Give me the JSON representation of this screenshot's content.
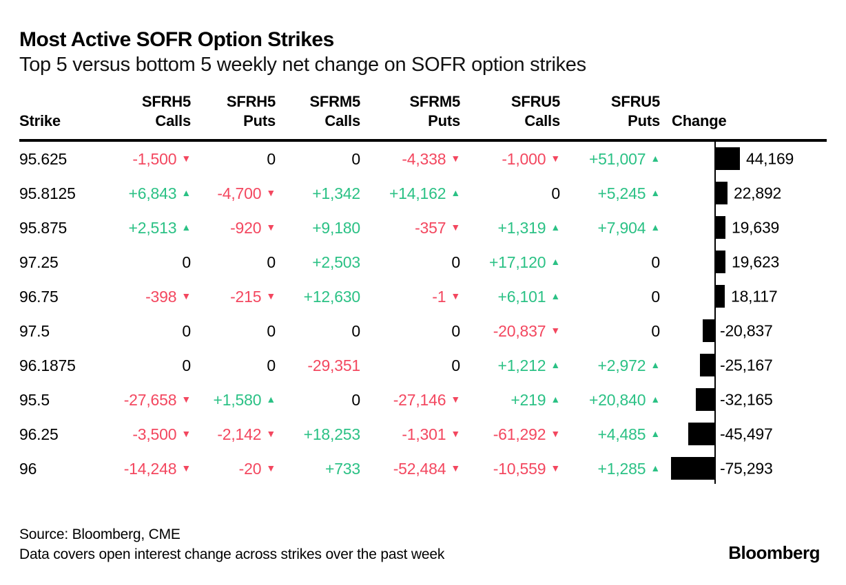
{
  "header": {
    "title": "Most Active SOFR Option Strikes",
    "subtitle": "Top 5 versus bottom 5 weekly net change on SOFR option strikes"
  },
  "colors": {
    "up": "#2bc185",
    "down": "#f3475f",
    "bar": "#000000"
  },
  "table": {
    "column_headers": [
      {
        "top": "",
        "bottom": "Strike"
      },
      {
        "top": "SFRH5",
        "bottom": "Calls"
      },
      {
        "top": "SFRH5",
        "bottom": "Puts"
      },
      {
        "top": "SFRM5",
        "bottom": "Calls"
      },
      {
        "top": "SFRM5",
        "bottom": "Puts"
      },
      {
        "top": "SFRU5",
        "bottom": "Calls"
      },
      {
        "top": "SFRU5",
        "bottom": "Puts"
      },
      {
        "top": "",
        "bottom": "Change"
      }
    ],
    "bar_scale_max": 75293,
    "rows": [
      {
        "strike": "95.625",
        "values": [
          {
            "t": "-1,500",
            "arrow": "down"
          },
          {
            "t": "0"
          },
          {
            "t": "0"
          },
          {
            "t": "-4,338",
            "arrow": "down"
          },
          {
            "t": "-1,000",
            "arrow": "down"
          },
          {
            "t": "+51,007",
            "arrow": "up"
          }
        ],
        "change": {
          "value": 44169,
          "label": "44,169"
        }
      },
      {
        "strike": "95.8125",
        "values": [
          {
            "t": "+6,843",
            "arrow": "up"
          },
          {
            "t": "-4,700",
            "arrow": "down"
          },
          {
            "t": "+1,342"
          },
          {
            "t": "+14,162",
            "arrow": "up"
          },
          {
            "t": "0"
          },
          {
            "t": "+5,245",
            "arrow": "up"
          }
        ],
        "change": {
          "value": 22892,
          "label": "22,892"
        }
      },
      {
        "strike": "95.875",
        "values": [
          {
            "t": "+2,513",
            "arrow": "up"
          },
          {
            "t": "-920",
            "arrow": "down"
          },
          {
            "t": "+9,180"
          },
          {
            "t": "-357",
            "arrow": "down"
          },
          {
            "t": "+1,319",
            "arrow": "up"
          },
          {
            "t": "+7,904",
            "arrow": "up"
          }
        ],
        "change": {
          "value": 19639,
          "label": "19,639"
        }
      },
      {
        "strike": "97.25",
        "values": [
          {
            "t": "0"
          },
          {
            "t": "0"
          },
          {
            "t": "+2,503"
          },
          {
            "t": "0"
          },
          {
            "t": "+17,120",
            "arrow": "up"
          },
          {
            "t": "0"
          }
        ],
        "change": {
          "value": 19623,
          "label": "19,623"
        }
      },
      {
        "strike": "96.75",
        "values": [
          {
            "t": "-398",
            "arrow": "down"
          },
          {
            "t": "-215",
            "arrow": "down"
          },
          {
            "t": "+12,630"
          },
          {
            "t": "-1",
            "arrow": "down"
          },
          {
            "t": "+6,101",
            "arrow": "up"
          },
          {
            "t": "0"
          }
        ],
        "change": {
          "value": 18117,
          "label": "18,117"
        }
      },
      {
        "strike": "97.5",
        "values": [
          {
            "t": "0"
          },
          {
            "t": "0"
          },
          {
            "t": "0"
          },
          {
            "t": "0"
          },
          {
            "t": "-20,837",
            "arrow": "down"
          },
          {
            "t": "0"
          }
        ],
        "change": {
          "value": -20837,
          "label": "-20,837"
        }
      },
      {
        "strike": "96.1875",
        "values": [
          {
            "t": "0"
          },
          {
            "t": "0"
          },
          {
            "t": "-29,351"
          },
          {
            "t": "0"
          },
          {
            "t": "+1,212",
            "arrow": "up"
          },
          {
            "t": "+2,972",
            "arrow": "up"
          }
        ],
        "change": {
          "value": -25167,
          "label": "-25,167"
        }
      },
      {
        "strike": "95.5",
        "values": [
          {
            "t": "-27,658",
            "arrow": "down"
          },
          {
            "t": "+1,580",
            "arrow": "up"
          },
          {
            "t": "0"
          },
          {
            "t": "-27,146",
            "arrow": "down"
          },
          {
            "t": "+219",
            "arrow": "up"
          },
          {
            "t": "+20,840",
            "arrow": "up"
          }
        ],
        "change": {
          "value": -32165,
          "label": "-32,165"
        }
      },
      {
        "strike": "96.25",
        "values": [
          {
            "t": "-3,500",
            "arrow": "down"
          },
          {
            "t": "-2,142",
            "arrow": "down"
          },
          {
            "t": "+18,253"
          },
          {
            "t": "-1,301",
            "arrow": "down"
          },
          {
            "t": "-61,292",
            "arrow": "down"
          },
          {
            "t": "+4,485",
            "arrow": "up"
          }
        ],
        "change": {
          "value": -45497,
          "label": "-45,497"
        }
      },
      {
        "strike": "96",
        "values": [
          {
            "t": "-14,248",
            "arrow": "down"
          },
          {
            "t": "-20",
            "arrow": "down"
          },
          {
            "t": "+733"
          },
          {
            "t": "-52,484",
            "arrow": "down"
          },
          {
            "t": "-10,559",
            "arrow": "down"
          },
          {
            "t": "+1,285",
            "arrow": "up"
          }
        ],
        "change": {
          "value": -75293,
          "label": "-75,293"
        }
      }
    ]
  },
  "footer": {
    "source": "Source: Bloomberg, CME",
    "note": "Data covers open interest change across strikes over the past week",
    "logo": "Bloomberg"
  },
  "chart_data": {
    "type": "table",
    "title": "Most Active SOFR Option Strikes",
    "subtitle": "Top 5 versus bottom 5 weekly net change on SOFR option strikes",
    "columns": [
      "Strike",
      "SFRH5 Calls",
      "SFRH5 Puts",
      "SFRM5 Calls",
      "SFRM5 Puts",
      "SFRU5 Calls",
      "SFRU5 Puts",
      "Change"
    ],
    "rows": [
      [
        95.625,
        -1500,
        0,
        0,
        -4338,
        -1000,
        51007,
        44169
      ],
      [
        95.8125,
        6843,
        -4700,
        1342,
        14162,
        0,
        5245,
        22892
      ],
      [
        95.875,
        2513,
        -920,
        9180,
        -357,
        1319,
        7904,
        19639
      ],
      [
        97.25,
        0,
        0,
        2503,
        0,
        17120,
        0,
        19623
      ],
      [
        96.75,
        -398,
        -215,
        12630,
        -1,
        6101,
        0,
        18117
      ],
      [
        97.5,
        0,
        0,
        0,
        0,
        -20837,
        0,
        -20837
      ],
      [
        96.1875,
        0,
        0,
        -29351,
        0,
        1212,
        2972,
        -25167
      ],
      [
        95.5,
        -27658,
        1580,
        0,
        -27146,
        219,
        20840,
        -32165
      ],
      [
        96.25,
        -3500,
        -2142,
        18253,
        -1301,
        -61292,
        4485,
        -45497
      ],
      [
        96,
        -14248,
        -20,
        733,
        -52484,
        -10559,
        1285,
        -75293
      ]
    ],
    "embedded_bar": {
      "type": "bar",
      "orientation": "horizontal",
      "column": "Change",
      "color": "#000000",
      "xlim": [
        -75293,
        51007
      ],
      "axis_at_zero": true
    },
    "legend": "none",
    "value_colors": {
      "positive": "#2bc185",
      "negative": "#f3475f",
      "zero": "#000000"
    }
  }
}
